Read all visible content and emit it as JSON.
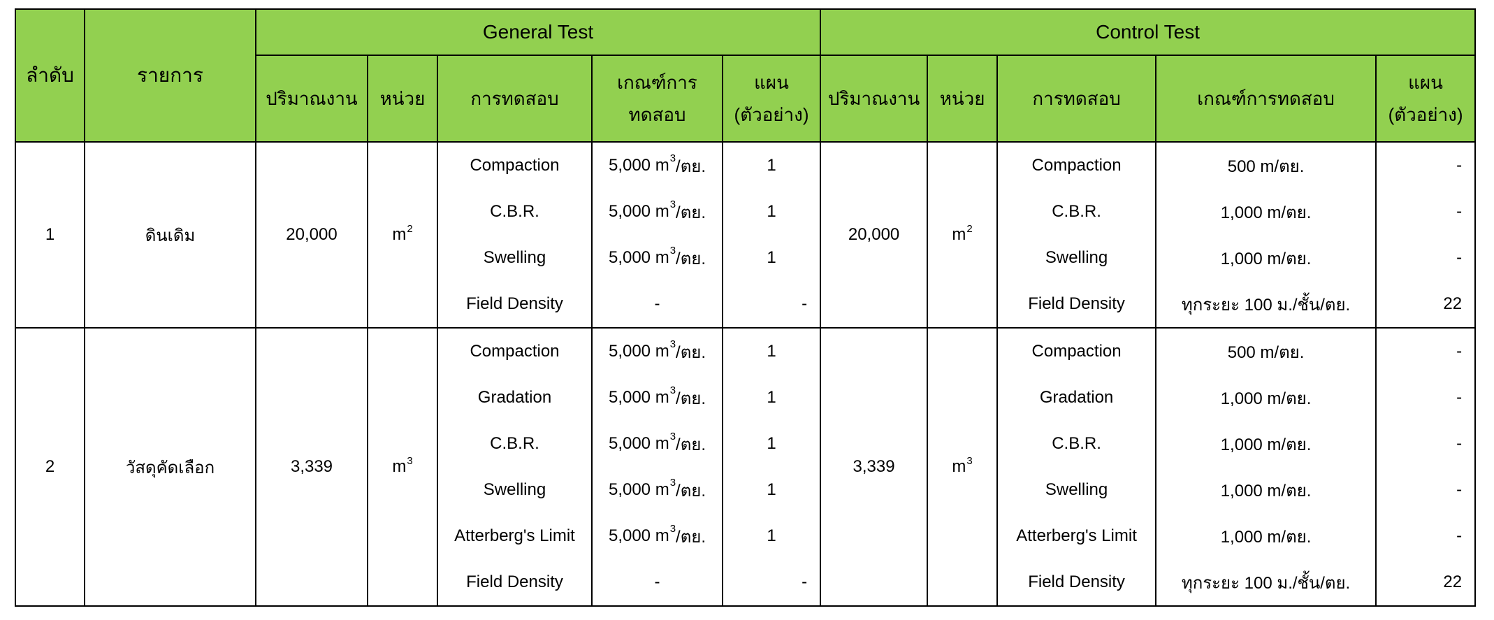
{
  "table": {
    "header": {
      "no": "ลำดับ",
      "item": "รายการ",
      "general_test": "General Test",
      "control_test": "Control Test",
      "quantity": "ปริมาณงาน",
      "unit": "หน่วย",
      "test": "การทดสอบ",
      "criteria_line1": "เกณฑ์การ",
      "criteria_line2": "ทดสอบ",
      "criteria_control": "เกณฑ์การทดสอบ",
      "plan_line1": "แผน",
      "plan_line2": "(ตัวอย่าง)"
    },
    "accent_color": "#92d050",
    "rows": [
      {
        "no": "1",
        "item": "ดินเดิม",
        "general": {
          "quantity": "20,000",
          "unit": {
            "base": "m",
            "sup": "2"
          },
          "tests": [
            {
              "name": "Compaction",
              "criteria": {
                "pre": "5,000 m",
                "sup": "3",
                "post": "/ตย."
              },
              "plan": "1",
              "plan_align": "center"
            },
            {
              "name": "C.B.R.",
              "criteria": {
                "pre": "5,000 m",
                "sup": "3",
                "post": "/ตย."
              },
              "plan": "1",
              "plan_align": "center"
            },
            {
              "name": "Swelling",
              "criteria": {
                "pre": "5,000 m",
                "sup": "3",
                "post": "/ตย."
              },
              "plan": "1",
              "plan_align": "center"
            },
            {
              "name": "Field Density",
              "criteria": {
                "pre": "-",
                "sup": "",
                "post": ""
              },
              "plan": "-",
              "plan_align": "right"
            }
          ]
        },
        "control": {
          "quantity": "20,000",
          "unit": {
            "base": "m",
            "sup": "2"
          },
          "tests": [
            {
              "name": "Compaction",
              "criteria": {
                "pre": "500 m/ตย.",
                "sup": "",
                "post": ""
              },
              "plan": "-",
              "plan_align": "right"
            },
            {
              "name": "C.B.R.",
              "criteria": {
                "pre": "1,000 m/ตย.",
                "sup": "",
                "post": ""
              },
              "plan": "-",
              "plan_align": "right"
            },
            {
              "name": "Swelling",
              "criteria": {
                "pre": "1,000 m/ตย.",
                "sup": "",
                "post": ""
              },
              "plan": "-",
              "plan_align": "right"
            },
            {
              "name": "Field Density",
              "criteria": {
                "pre": "ทุกระยะ 100 ม./ชั้น/ตย.",
                "sup": "",
                "post": ""
              },
              "plan": "22",
              "plan_align": "right"
            }
          ]
        }
      },
      {
        "no": "2",
        "item": "วัสดุคัดเลือก",
        "general": {
          "quantity": "3,339",
          "unit": {
            "base": "m",
            "sup": "3"
          },
          "tests": [
            {
              "name": "Compaction",
              "criteria": {
                "pre": "5,000 m",
                "sup": "3",
                "post": "/ตย."
              },
              "plan": "1",
              "plan_align": "center"
            },
            {
              "name": "Gradation",
              "criteria": {
                "pre": "5,000 m",
                "sup": "3",
                "post": "/ตย."
              },
              "plan": "1",
              "plan_align": "center"
            },
            {
              "name": "C.B.R.",
              "criteria": {
                "pre": "5,000 m",
                "sup": "3",
                "post": "/ตย."
              },
              "plan": "1",
              "plan_align": "center"
            },
            {
              "name": "Swelling",
              "criteria": {
                "pre": "5,000 m",
                "sup": "3",
                "post": "/ตย."
              },
              "plan": "1",
              "plan_align": "center"
            },
            {
              "name": "Atterberg's Limit",
              "criteria": {
                "pre": "5,000 m",
                "sup": "3",
                "post": "/ตย."
              },
              "plan": "1",
              "plan_align": "center"
            },
            {
              "name": "Field Density",
              "criteria": {
                "pre": "-",
                "sup": "",
                "post": ""
              },
              "plan": "-",
              "plan_align": "right"
            }
          ]
        },
        "control": {
          "quantity": "3,339",
          "unit": {
            "base": "m",
            "sup": "3"
          },
          "tests": [
            {
              "name": "Compaction",
              "criteria": {
                "pre": "500 m/ตย.",
                "sup": "",
                "post": ""
              },
              "plan": "-",
              "plan_align": "right"
            },
            {
              "name": "Gradation",
              "criteria": {
                "pre": "1,000 m/ตย.",
                "sup": "",
                "post": ""
              },
              "plan": "-",
              "plan_align": "right"
            },
            {
              "name": "C.B.R.",
              "criteria": {
                "pre": "1,000 m/ตย.",
                "sup": "",
                "post": ""
              },
              "plan": "-",
              "plan_align": "right"
            },
            {
              "name": "Swelling",
              "criteria": {
                "pre": "1,000 m/ตย.",
                "sup": "",
                "post": ""
              },
              "plan": "-",
              "plan_align": "right"
            },
            {
              "name": "Atterberg's Limit",
              "criteria": {
                "pre": "1,000 m/ตย.",
                "sup": "",
                "post": ""
              },
              "plan": "-",
              "plan_align": "right"
            },
            {
              "name": "Field Density",
              "criteria": {
                "pre": "ทุกระยะ 100 ม./ชั้น/ตย.",
                "sup": "",
                "post": ""
              },
              "plan": "22",
              "plan_align": "right"
            }
          ]
        }
      }
    ]
  }
}
